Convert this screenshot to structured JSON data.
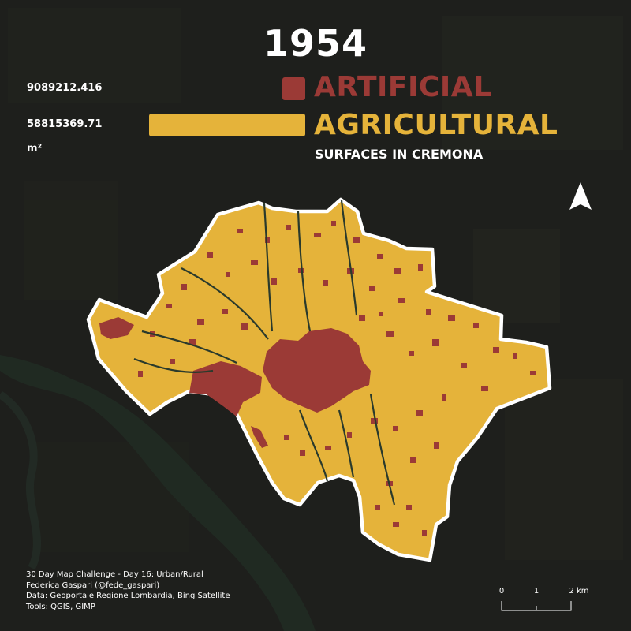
{
  "title": "1954",
  "stats": {
    "artificial_area": "9089212.416",
    "agricultural_area": "58815369.71",
    "unit": "m²"
  },
  "legend": {
    "artificial": {
      "label": "ARTIFICIAL",
      "color": "#9b3a36"
    },
    "agricultural": {
      "label": "AGRICULTURAL",
      "color": "#e5b33a"
    },
    "subtitle": "SURFACES IN CREMONA"
  },
  "credits": [
    "30 Day Map Challenge - Day 16: Urban/Rural",
    "Federica Gaspari (@fede_gaspari)",
    "Data: Geoportale Regione Lombardia, Bing Satellite",
    "Tools: QGIS, GIMP"
  ],
  "scale": {
    "ticks": [
      "0",
      "1",
      "2 km"
    ]
  },
  "north_arrow": "north-arrow-icon",
  "colors": {
    "background": "#1d1e1b",
    "outline": "#ffffff",
    "river": "#223128"
  }
}
